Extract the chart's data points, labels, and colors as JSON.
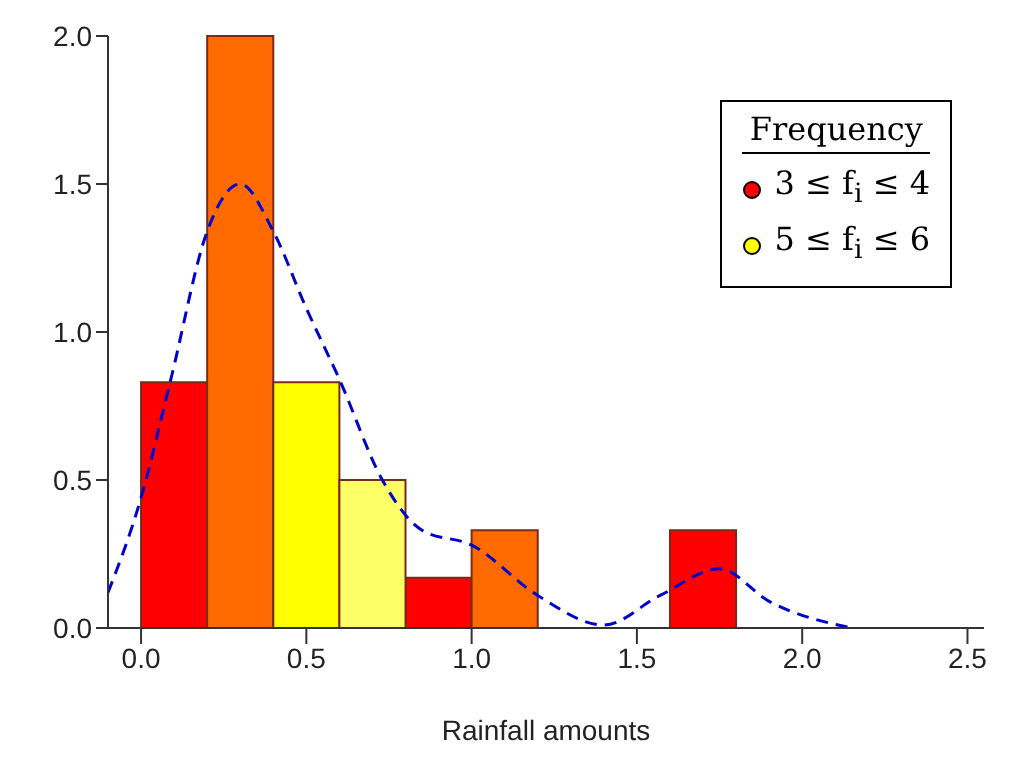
{
  "chart_data": {
    "type": "histogram",
    "xlabel": "Rainfall amounts",
    "legend_title": "Frequency",
    "legend": "top right",
    "xlim": [
      -0.1,
      2.55
    ],
    "ylim": [
      0,
      2.0
    ],
    "xticks": [
      {
        "value": 0,
        "label": "0.0"
      },
      {
        "value": 0.5,
        "label": "0.5"
      },
      {
        "value": 1,
        "label": "1.0"
      },
      {
        "value": 1.5,
        "label": "1.5"
      },
      {
        "value": 2,
        "label": "2.0"
      },
      {
        "value": 2.5,
        "label": "2.5"
      }
    ],
    "yticks": [
      {
        "value": 0,
        "label": "0.0"
      },
      {
        "value": 0.5,
        "label": "0.5"
      },
      {
        "value": 1,
        "label": "1.0"
      },
      {
        "value": 1.5,
        "label": "1.5"
      },
      {
        "value": 2,
        "label": "2.0"
      }
    ],
    "bins": [
      0,
      0.2,
      0.4,
      0.6,
      0.8,
      1.0,
      1.2,
      1.4,
      1.6,
      1.8
    ],
    "series": [
      {
        "name": "3 ≤ f$_{i}$ ≤ 4",
        "color": "#ff0000",
        "values": [
          0.83,
          null,
          null,
          null,
          0.17,
          null,
          null,
          null,
          0.33
        ]
      },
      {
        "color": "#ff6a00",
        "values": [
          null,
          2.0,
          null,
          null,
          null,
          0.33,
          0,
          0,
          null
        ]
      },
      {
        "name": "5 ≤ f$_{i}$ ≤ 6",
        "color": "#ffff00",
        "values": [
          null,
          null,
          0.83,
          null,
          null,
          null,
          null,
          null,
          null
        ]
      },
      {
        "color": "#ffff66",
        "values": [
          null,
          null,
          null,
          0.5,
          null,
          null,
          null,
          null,
          null
        ]
      },
      {
        "type": "line",
        "color": "#0000cc",
        "line_style": "dashed",
        "marker": "none",
        "x": [
          -0.1,
          0,
          0.09,
          0.2,
          0.3,
          0.4,
          0.5,
          0.6,
          0.73,
          0.85,
          1.0,
          1.2,
          1.4,
          1.57,
          1.75,
          1.9,
          2.15
        ],
        "values": [
          0.12,
          0.44,
          0.84,
          1.34,
          1.5,
          1.34,
          1.08,
          0.84,
          0.5,
          0.33,
          0.28,
          0.11,
          0.01,
          0.11,
          0.2,
          0.09,
          0.0
        ]
      }
    ]
  }
}
